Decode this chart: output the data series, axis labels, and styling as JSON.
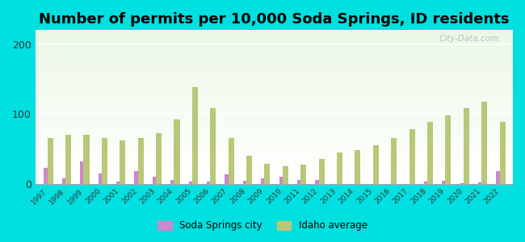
{
  "title": "Number of permits per 10,000 Soda Springs, ID residents",
  "years": [
    1997,
    1998,
    1999,
    2000,
    2001,
    2002,
    2003,
    2004,
    2005,
    2006,
    2007,
    2008,
    2009,
    2010,
    2011,
    2012,
    2013,
    2014,
    2015,
    2016,
    2017,
    2018,
    2019,
    2020,
    2021,
    2022
  ],
  "soda_springs": [
    22,
    8,
    32,
    14,
    3,
    18,
    10,
    5,
    3,
    3,
    13,
    4,
    7,
    10,
    5,
    5,
    0,
    0,
    0,
    0,
    0,
    3,
    4,
    1,
    2,
    18
  ],
  "idaho_avg": [
    65,
    70,
    70,
    65,
    62,
    65,
    72,
    92,
    138,
    108,
    65,
    40,
    28,
    25,
    27,
    35,
    45,
    48,
    55,
    65,
    78,
    88,
    98,
    108,
    118,
    88
  ],
  "soda_color": "#cc88cc",
  "idaho_color": "#b8c878",
  "outer_bg": "#00e0e0",
  "ylim": [
    0,
    220
  ],
  "yticks": [
    0,
    100,
    200
  ],
  "title_fontsize": 13,
  "watermark": "City-Data.com"
}
